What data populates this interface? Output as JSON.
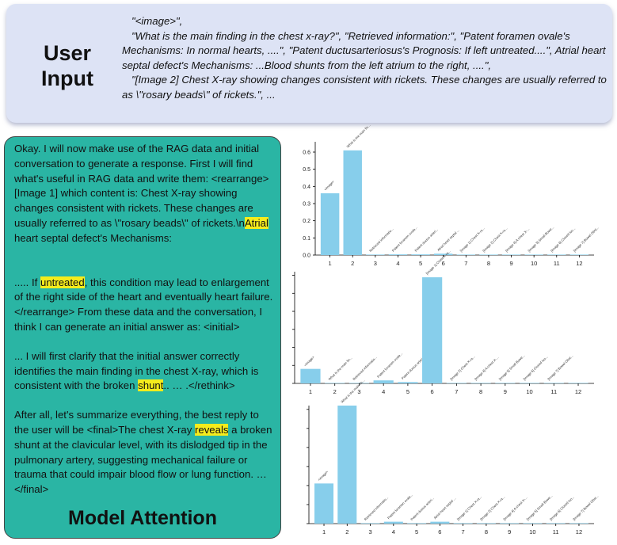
{
  "user_input": {
    "title_line1": "User",
    "title_line2": "Input",
    "lines": [
      "\"<image>\",",
      "\"What is the main finding in the chest x-ray?\",  \"Retrieved information:\", \"Patent foramen ovale's Mechanisms: In normal hearts, ....\",  \"Patent ductusarteriosus's Prognosis: If left untreated....\", Atrial heart septal defect's Mechanisms: ...Blood shunts from the left atrium to the right, ....\",",
      "\"[Image 2] Chest X-ray showing changes consistent with rickets. These changes are usually referred to as \\\"rosary beads\\\" of rickets.\", ..."
    ]
  },
  "model_attention": {
    "title": "Model Attention",
    "p1_before": "Okay. I will now make use of the RAG data and initial conversation to generate a response. First I will find what's useful in RAG data and write them: <rearrange>[Image 1] which content is: Chest X-ray showing changes consistent with rickets. These changes are usually referred to as \\\"rosary beads\\\" of rickets.\\n",
    "p1_hl": "Atrial",
    "p1_after": " heart septal defect's Mechanisms:",
    "p2_before": "..... If ",
    "p2_hl": "untreated",
    "p2_after": ", this condition may lead to enlargement of the right side of the heart and eventually heart failure.</rearrange> From these data and the conversation, I think I can generate an initial answer as: <initial>",
    "p3_before": "...  I will first clarify that the initial answer correctly identifies the main finding in the chest X-ray, which is consistent with the broken ",
    "p3_hl": "shunt",
    "p3_after": "..  … .</rethink>",
    "p4_before": " After all, let's summarize everything, the best reply to the user will be <final>The chest X-ray ",
    "p4_hl": "reveals",
    "p4_after": " a broken shunt at the clavicular level, with its dislodged tip in the pulmonary artery, suggesting mechanical failure or trauma that could impair blood flow or lung function.  …  </final>"
  },
  "chart_data": [
    {
      "type": "bar",
      "x": [
        1,
        2,
        3,
        4,
        5,
        6,
        7,
        8,
        9,
        10,
        11,
        12
      ],
      "categories": [
        "<image>",
        "What is the main fin...",
        "Retrieved informatio...",
        "Patent foramen ovale...",
        "Patent ductus arteri...",
        "Atrial heart septal ...",
        "[Image 1] Chest X-ra...",
        "[Image 2] Chest X-ra...",
        "[Image 4] A chest X-...",
        "[Image 5] Small Bowe...",
        "[Image 6] Closed loo...",
        "[Image 7] Bowel Obst..."
      ],
      "values": [
        0.36,
        0.61,
        0.003,
        0.004,
        0.004,
        0.008,
        0.002,
        0.001,
        0.001,
        0.001,
        0.001,
        0.001
      ],
      "yticks": [
        "0.0",
        "0.1",
        "0.2",
        "0.3",
        "0.4",
        "0.5",
        "0.6"
      ],
      "ylim": [
        0,
        0.66
      ],
      "color": "#87ceeb"
    },
    {
      "type": "bar",
      "x": [
        1,
        2,
        3,
        4,
        5,
        6,
        7,
        8,
        9,
        10,
        11,
        12
      ],
      "categories": [
        "<image>",
        "What is the main fin...",
        "Retrieved informatio...",
        "Patent foramen ovale...",
        "Patent ductus arteri...",
        "[Image 1] Chest X-ra...",
        "[Image 2] Chest X-ra...",
        "[Image 4] A chest X-...",
        "[Image 5] Small Bowe...",
        "[Image 6] Closed loo...",
        "[Image 7] Bowel Obst...",
        ""
      ],
      "values": [
        0.13,
        0.004,
        0.004,
        0.027,
        0.012,
        0.95,
        0.003,
        0.001,
        0.001,
        0.001,
        0.001,
        0.001
      ],
      "yticks": [],
      "ylim": [
        0,
        1
      ],
      "color": "#87ceeb"
    },
    {
      "type": "bar",
      "x": [
        1,
        2,
        3,
        4,
        5,
        6,
        7,
        8,
        9,
        10,
        11,
        12
      ],
      "categories": [
        "<image>",
        "What is the main fin...",
        "Retrieved informatio...",
        "Patent foramen ovale...",
        "Patent ductus arteri...",
        "Atrial heart septal ...",
        "[Image 1] Chest X-ra...",
        "[Image 2] Chest X-ra...",
        "[Image 4] A chest X-...",
        "[Image 5] Small Bowe...",
        "[Image 6] Closed loo...",
        "[Image 7] Bowel Obst..."
      ],
      "values": [
        0.34,
        1.0,
        0.003,
        0.016,
        0.004,
        0.016,
        0.002,
        0.001,
        0.001,
        0.001,
        0.001,
        0.001
      ],
      "yticks": [],
      "ylim": [
        0,
        1
      ],
      "color": "#87ceeb"
    }
  ]
}
